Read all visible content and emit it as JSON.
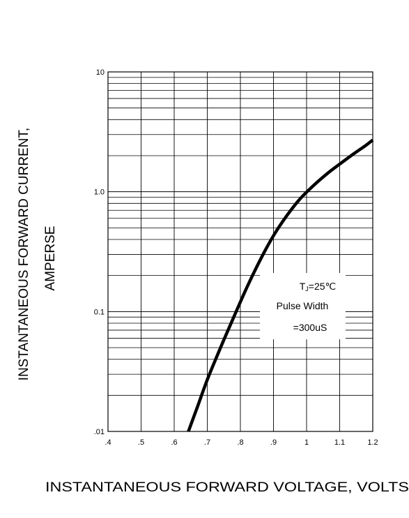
{
  "chart_data": {
    "type": "line",
    "title": "",
    "xlabel": "INSTANTANEOUS FORWARD VOLTAGE,  VOLTS",
    "ylabel_line1": "INSTANTANEOUS FORWARD CURRENT,",
    "ylabel_line2": "AMPERSE",
    "xlim": [
      0.4,
      1.2
    ],
    "ylim": [
      0.01,
      10
    ],
    "y_scale": "log",
    "grid": true,
    "x_ticks": [
      {
        "value": 0.4,
        "label": ".4"
      },
      {
        "value": 0.5,
        "label": ".5"
      },
      {
        "value": 0.6,
        "label": ".6"
      },
      {
        "value": 0.7,
        "label": ".7"
      },
      {
        "value": 0.8,
        "label": ".8"
      },
      {
        "value": 0.9,
        "label": ".9"
      },
      {
        "value": 1.0,
        "label": "1"
      },
      {
        "value": 1.1,
        "label": "1.1"
      },
      {
        "value": 1.2,
        "label": "1.2"
      }
    ],
    "y_ticks": [
      {
        "value": 0.01,
        "label": ".01"
      },
      {
        "value": 0.1,
        "label": "0.1"
      },
      {
        "value": 1,
        "label": "1.0"
      },
      {
        "value": 10,
        "label": "10"
      }
    ],
    "series": [
      {
        "x": [
          0.643,
          0.67,
          0.7,
          0.74,
          0.78,
          0.82,
          0.86,
          0.9,
          0.94,
          0.98,
          1.02,
          1.06,
          1.1,
          1.14,
          1.18,
          1.2
        ],
        "y": [
          0.01,
          0.016,
          0.027,
          0.05,
          0.09,
          0.16,
          0.27,
          0.43,
          0.63,
          0.87,
          1.12,
          1.4,
          1.7,
          2.05,
          2.45,
          2.7
        ]
      }
    ],
    "annotation": {
      "line1_main": "T",
      "line1_sub": "J",
      "line1_rest": "=25℃",
      "line2": "Pulse Width",
      "line3": "=300uS"
    }
  }
}
